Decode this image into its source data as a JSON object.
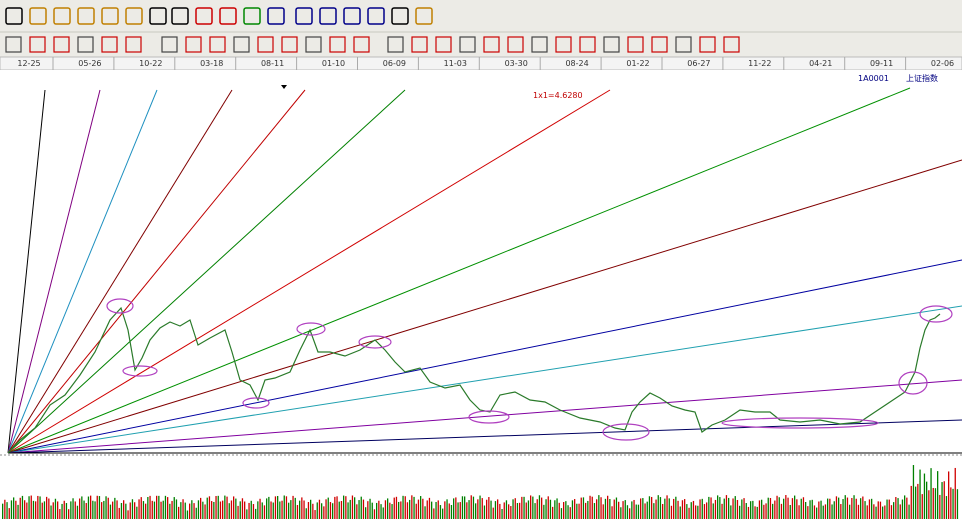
{
  "axis": {
    "dates": [
      "12-25",
      "05-26",
      "10-22",
      "03-18",
      "08-11",
      "01-10",
      "06-09",
      "11-03",
      "03-30",
      "08-24",
      "01-22",
      "06-27",
      "11-22",
      "04-21",
      "09-11",
      "02-06"
    ]
  },
  "chart": {
    "fan_label": "1x1=4.6280",
    "code": "1A0001",
    "name": "上证指数"
  }
}
